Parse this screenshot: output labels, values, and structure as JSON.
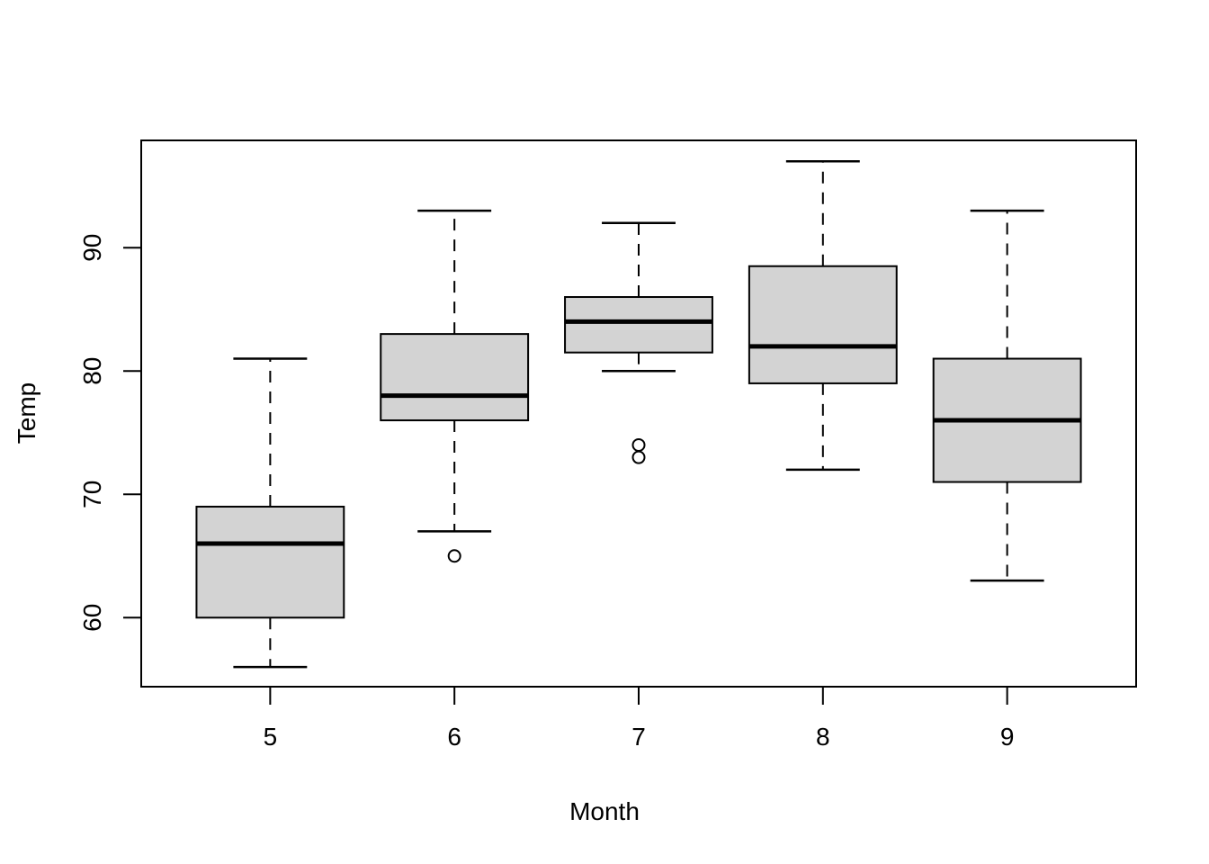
{
  "chart_data": {
    "type": "boxplot",
    "title": "",
    "xlabel": "Month",
    "ylabel": "Temp",
    "categories": [
      "5",
      "6",
      "7",
      "8",
      "9"
    ],
    "x_positions": [
      5,
      6,
      7,
      8,
      9
    ],
    "y_ticks": [
      60,
      70,
      80,
      90
    ],
    "xlim": [
      4.3,
      9.7
    ],
    "ylim": [
      54.4,
      98.7
    ],
    "grid": false,
    "box_half_width_units": 0.4,
    "cap_half_width_units": 0.2,
    "series": [
      {
        "category": "5",
        "lower_whisker": 56,
        "q1": 60,
        "median": 66,
        "q3": 69,
        "upper_whisker": 81,
        "outliers": []
      },
      {
        "category": "6",
        "lower_whisker": 67,
        "q1": 76,
        "median": 78,
        "q3": 83,
        "upper_whisker": 93,
        "outliers": [
          65
        ]
      },
      {
        "category": "7",
        "lower_whisker": 80,
        "q1": 81.5,
        "median": 84,
        "q3": 86,
        "upper_whisker": 92,
        "outliers": [
          74,
          73
        ]
      },
      {
        "category": "8",
        "lower_whisker": 72,
        "q1": 79,
        "median": 82,
        "q3": 88.5,
        "upper_whisker": 97,
        "outliers": []
      },
      {
        "category": "9",
        "lower_whisker": 63,
        "q1": 71,
        "median": 76,
        "q3": 81,
        "upper_whisker": 93,
        "outliers": []
      }
    ],
    "colors": {
      "box_fill": "#d3d3d3",
      "stroke": "#000000",
      "background": "#ffffff"
    }
  }
}
